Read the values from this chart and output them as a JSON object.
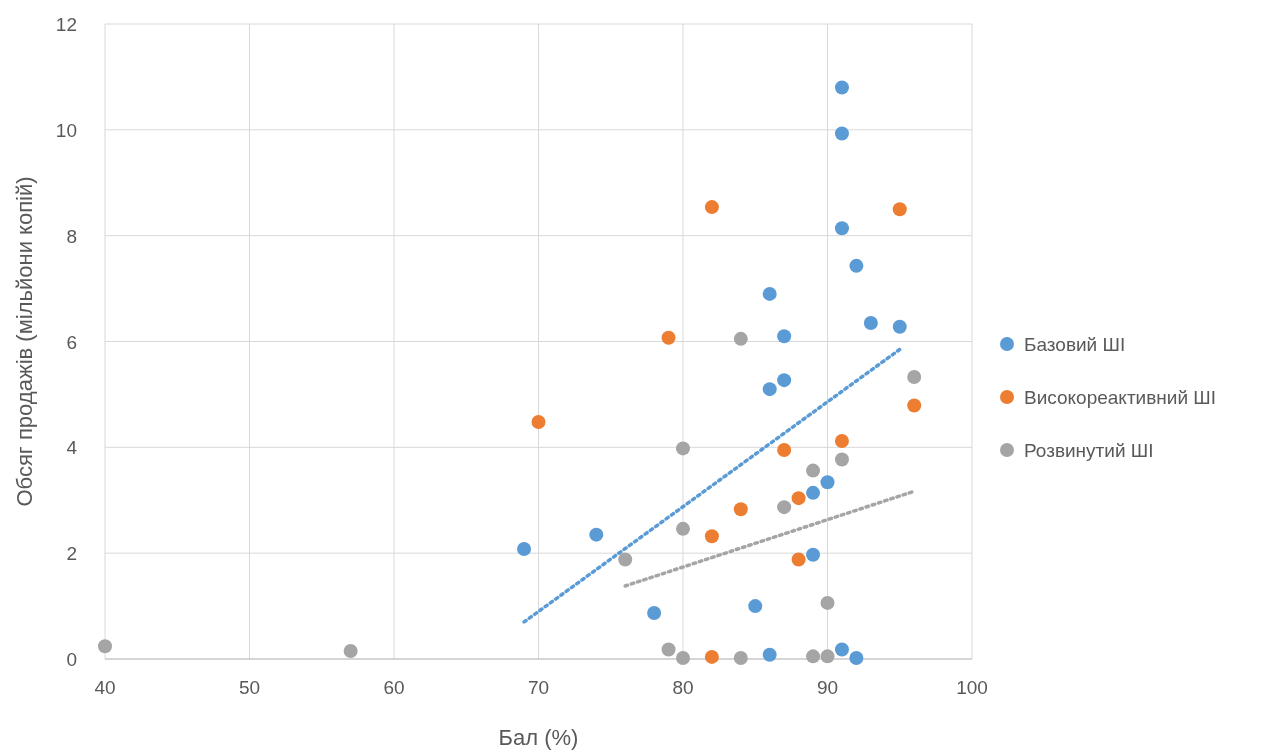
{
  "chart_data": {
    "type": "scatter",
    "xlabel": "Бал (%)",
    "ylabel": "Обсяг продажів (мільйони копій)",
    "xlim": [
      40,
      100
    ],
    "xticks": [
      40,
      50,
      60,
      70,
      80,
      90,
      100
    ],
    "ylim": [
      0,
      12
    ],
    "yticks": [
      0,
      2,
      4,
      6,
      8,
      10,
      12
    ],
    "grid": true,
    "legend": "right",
    "marker": "circle",
    "series": [
      {
        "name": "Базовий ШІ",
        "color": "#5b9bd5",
        "x": [
          69,
          74,
          78,
          85,
          86,
          86,
          86,
          87,
          87,
          89,
          89,
          90,
          91,
          91,
          91,
          91,
          92,
          92,
          93,
          95
        ],
        "values": [
          2.08,
          2.35,
          0.87,
          1.0,
          0.08,
          5.1,
          6.9,
          5.27,
          6.1,
          3.14,
          1.97,
          3.34,
          10.8,
          9.93,
          8.14,
          0.18,
          7.43,
          0.02,
          6.35,
          6.28
        ]
      },
      {
        "name": "Високореактивний ШІ",
        "color": "#ed7d31",
        "x": [
          70,
          79,
          82,
          82,
          82,
          84,
          87,
          88,
          88,
          91,
          95,
          96
        ],
        "values": [
          4.48,
          6.07,
          8.54,
          2.32,
          0.04,
          2.83,
          3.95,
          3.04,
          1.88,
          4.12,
          8.5,
          4.79
        ]
      },
      {
        "name": "Розвинутий ШІ",
        "color": "#a5a5a5",
        "x": [
          40,
          57,
          76,
          79,
          80,
          80,
          80,
          84,
          84,
          87,
          89,
          89,
          90,
          90,
          91,
          96
        ],
        "values": [
          0.24,
          0.15,
          1.88,
          0.18,
          3.98,
          2.46,
          0.02,
          6.05,
          0.02,
          2.87,
          3.56,
          0.05,
          1.06,
          0.05,
          3.77,
          5.33
        ]
      },
      {
        "type": "line",
        "marker": "none",
        "color": "#5b9bd5",
        "line_style": "dotted",
        "x": [
          69,
          95
        ],
        "values": [
          0.7,
          5.85
        ]
      },
      {
        "type": "line",
        "marker": "none",
        "color": "#a5a5a5",
        "line_style": "dotted",
        "x": [
          76,
          96
        ],
        "values": [
          1.38,
          3.17
        ]
      }
    ]
  }
}
